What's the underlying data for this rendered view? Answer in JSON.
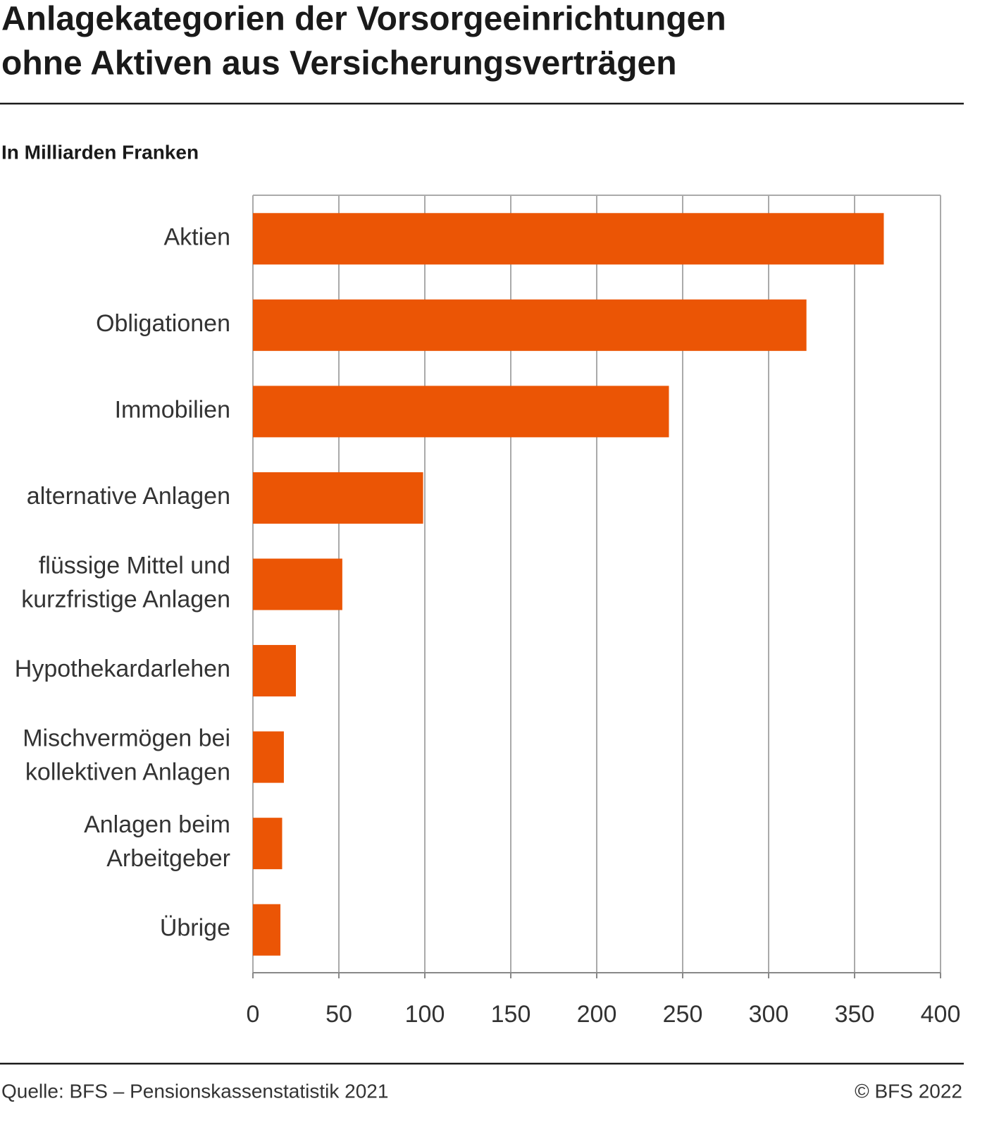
{
  "chart_data": {
    "type": "hbar",
    "title": [
      "Anlagekategorien der Vorsorgeeinrichtungen",
      "ohne Aktiven aus Versicherungsverträgen"
    ],
    "subtitle": "In Milliarden Franken",
    "categories": [
      [
        "Aktien"
      ],
      [
        "Obligationen"
      ],
      [
        "Immobilien"
      ],
      [
        "alternative Anlagen"
      ],
      [
        "flüssige Mittel und",
        "kurzfristige Anlagen"
      ],
      [
        "Hypothekardarlehen"
      ],
      [
        "Mischvermögen bei",
        "kollektiven Anlagen"
      ],
      [
        "Anlagen beim",
        "Arbeitgeber"
      ],
      [
        "Übrige"
      ]
    ],
    "values": [
      367,
      322,
      242,
      99,
      52,
      25,
      18,
      17,
      16
    ],
    "color": "#eb5505",
    "xlim": [
      0,
      400
    ],
    "xticks": [
      0,
      50,
      100,
      150,
      200,
      250,
      300,
      350,
      400
    ],
    "grid": true,
    "source": "Quelle: BFS – Pensionskassenstatistik 2021",
    "copyright": "© BFS 2022"
  }
}
